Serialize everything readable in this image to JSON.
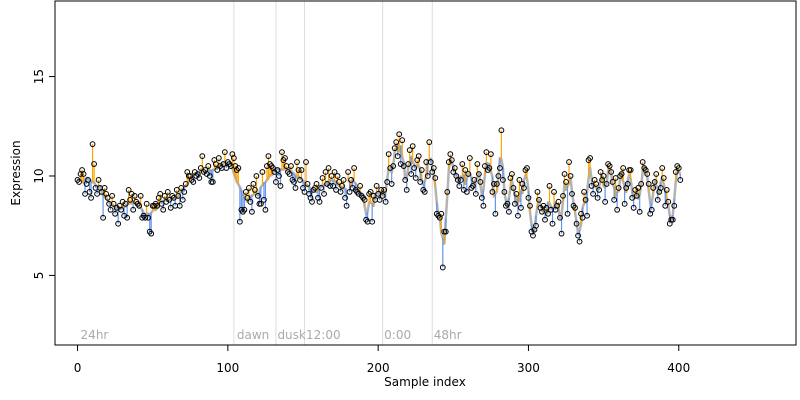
{
  "chart_data": {
    "type": "scatter",
    "title": "",
    "xlabel": "Sample index",
    "ylabel": "Expression",
    "xlim": [
      -15,
      478
    ],
    "ylim": [
      1.5,
      18.8
    ],
    "xticks": [
      0,
      100,
      200,
      300,
      400
    ],
    "yticks": [
      5,
      10,
      15
    ],
    "grid": false,
    "legend": "none",
    "vlines": [
      104,
      132,
      151,
      203,
      236
    ],
    "annotations": [
      {
        "text": "24hr",
        "x": 2,
        "y": 2
      },
      {
        "text": "dawn",
        "x": 106,
        "y": 2
      },
      {
        "text": "dusk",
        "x": 133,
        "y": 2
      },
      {
        "text": "12:00",
        "x": 152,
        "y": 2
      },
      {
        "text": "0:00",
        "x": 204,
        "y": 2
      },
      {
        "text": "48hr",
        "x": 237,
        "y": 2
      }
    ],
    "colors": {
      "above_fit": "#FFA500",
      "below_fit": "#6495ED",
      "fit_line": "#999999",
      "vline": "#dddddd",
      "annotation": "#aaaaaa"
    },
    "series": [
      {
        "values": [
          9.8,
          9.7,
          10.1,
          10.3,
          10.1,
          9.1,
          9.6,
          9.8,
          9.2,
          8.9,
          11.6,
          10.6,
          9.4,
          9.1,
          9.8,
          9.4,
          9.2,
          7.9,
          9.4,
          9.1,
          8.9,
          8.6,
          8.3,
          9.0,
          8.6,
          8.1,
          8.4,
          7.6,
          8.5,
          8.3,
          8.7,
          8.0,
          8.6,
          7.9,
          9.3,
          8.8,
          9.1,
          8.3,
          9.0,
          8.7,
          8.6,
          8.5,
          9.0,
          7.9,
          8.0,
          7.9,
          8.6,
          7.9,
          7.2,
          7.1,
          8.5,
          8.5,
          8.6,
          8.5,
          8.9,
          9.1,
          8.6,
          8.3,
          9.0,
          8.7,
          9.2,
          8.8,
          8.4,
          9.0,
          8.9,
          8.5,
          9.3,
          9.0,
          8.5,
          9.4,
          8.8,
          9.2,
          9.6,
          10.2,
          10.0,
          10.0,
          9.8,
          9.7,
          10.2,
          10.0,
          10.1,
          9.9,
          10.4,
          11.0,
          10.2,
          10.3,
          10.1,
          10.5,
          10.0,
          9.7,
          9.7,
          10.8,
          10.6,
          10.3,
          10.9,
          10.5,
          10.4,
          10.6,
          11.2,
          10.4,
          10.7,
          10.6,
          10.5,
          11.1,
          10.9,
          10.5,
          10.3,
          10.4,
          7.7,
          8.3,
          8.2,
          8.3,
          9.2,
          8.9,
          9.4,
          8.7,
          8.2,
          9.6,
          9.3,
          10.0,
          9.0,
          8.6,
          8.6,
          10.2,
          8.8,
          8.3,
          10.5,
          11.0,
          10.6,
          10.5,
          10.4,
          10.2,
          9.7,
          10.3,
          10.0,
          9.5,
          11.2,
          10.8,
          10.9,
          10.5,
          10.2,
          10.1,
          10.5,
          9.8,
          9.7,
          9.4,
          10.7,
          10.3,
          9.8,
          10.3,
          9.4,
          9.2,
          10.7,
          9.6,
          9.1,
          8.9,
          8.7,
          9.3,
          9.4,
          9.6,
          8.9,
          8.7,
          9.4,
          9.9,
          9.1,
          10.2,
          9.6,
          10.4,
          9.5,
          10.0,
          9.5,
          10.2,
          9.3,
          10.0,
          9.7,
          9.2,
          9.5,
          9.8,
          8.9,
          8.5
        ]
      },
      {
        "values": [
          10.2,
          9.2,
          9.8,
          9.4,
          10.4,
          9.3,
          9.2,
          9.1,
          9.5,
          9.0,
          8.9,
          8.8,
          7.8,
          7.7,
          9.1,
          9.2,
          7.7,
          9.0,
          8.8,
          9.5,
          9.1,
          8.8,
          9.3,
          9.0,
          9.3,
          8.7,
          9.7,
          11.1,
          10.4,
          9.6,
          10.5,
          11.4,
          11.7,
          11.0,
          12.1,
          10.6,
          11.8,
          10.5,
          9.8,
          9.3,
          10.6,
          11.3,
          10.1,
          11.5,
          10.4,
          9.9,
          10.8,
          11.0,
          9.7,
          10.3,
          9.3,
          9.2,
          10.7,
          10.0,
          11.7,
          10.7,
          10.2,
          10.4,
          9.9,
          8.1,
          8.0,
          7.9,
          8.1,
          5.4,
          7.2,
          7.2,
          9.2,
          10.7,
          11.1,
          10.8,
          10.2,
          10.4,
          10.0,
          9.8,
          9.5,
          9.8,
          10.6,
          9.3,
          10.3,
          9.2,
          10.1,
          10.9,
          9.4,
          9.5,
          9.8,
          9.1,
          10.6,
          10.1,
          9.7,
          8.9,
          8.5,
          10.5,
          11.2,
          10.3,
          10.4,
          11.1,
          9.2,
          9.6,
          8.1,
          9.6,
          10.0,
          10.4,
          12.3,
          9.8,
          9.2,
          8.5,
          8.6,
          8.2,
          9.9,
          10.1,
          9.4,
          8.6,
          9.1,
          8.0,
          9.8,
          8.4,
          9.6,
          9.4,
          10.3,
          10.4,
          8.9,
          8.5,
          7.2,
          7.0,
          7.3,
          7.5,
          9.2,
          8.8,
          8.4,
          8.2,
          8.5,
          7.8,
          8.4,
          8.1,
          9.5,
          8.3,
          7.6,
          9.2,
          8.3,
          8.5,
          8.7,
          7.9,
          7.1,
          9.0,
          10.1,
          9.7,
          8.1,
          10.7,
          10.0,
          9.1,
          8.5,
          8.4,
          7.6,
          7.0,
          6.7,
          8.1,
          7.9,
          9.2,
          8.8,
          8.0,
          10.8,
          10.9,
          9.5,
          9.1,
          9.8,
          9.6,
          8.9,
          9.3,
          10.2,
          9.8,
          10.0,
          8.7,
          9.6,
          10.6,
          10.5,
          10.2,
          9.7,
          8.8,
          9.9,
          8.3,
          9.4,
          10.0,
          10.1,
          10.4,
          8.6,
          9.4,
          9.6,
          10.3,
          10.3,
          8.9,
          8.4,
          9.3,
          9.0,
          9.4,
          8.2,
          9.6,
          10.7,
          10.4,
          10.3,
          10.1,
          9.6,
          8.1,
          8.3,
          9.4,
          9.7,
          10.1,
          8.8,
          9.2,
          9.4,
          10.4,
          9.9,
          8.5,
          9.3,
          8.7,
          7.6,
          7.8,
          7.8,
          8.5,
          10.2,
          10.5,
          10.4,
          9.8
        ]
      }
    ]
  }
}
